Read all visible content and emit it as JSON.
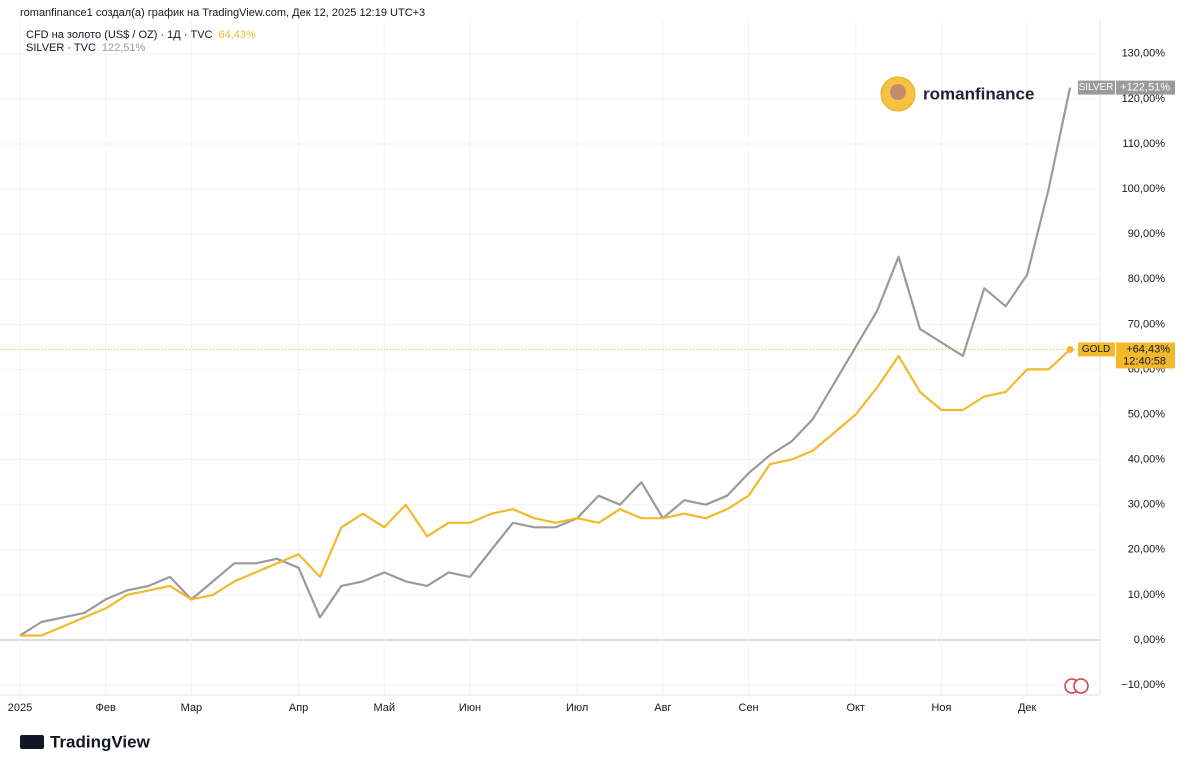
{
  "header": "romanfinance1 создал(а) график на TradingView.com, Дек 12, 2025 12:19 UTC+3",
  "watermark": "romanfinance",
  "footer": "TradingView",
  "chart_data": {
    "type": "line",
    "categories": [
      "2025",
      null,
      null,
      null,
      "Фев",
      null,
      null,
      null,
      "Мар",
      null,
      null,
      null,
      null,
      "Апр",
      null,
      null,
      null,
      "Май",
      null,
      null,
      null,
      "Июн",
      null,
      null,
      null,
      null,
      "Июл",
      null,
      null,
      null,
      "Авг",
      null,
      null,
      null,
      "Сен",
      null,
      null,
      null,
      null,
      "Окт",
      null,
      null,
      null,
      "Ноя",
      null,
      null,
      null,
      "Дек",
      null,
      null
    ],
    "series": [
      {
        "name": "CFD на золото (US$ / OZ) · 1Д · TVC",
        "tag_name": "GOLD",
        "legend_value": "64,43%",
        "tag": "+64,43%",
        "countdown": "12:40:58",
        "color": "#f2b92c",
        "values": [
          1,
          1,
          3,
          5,
          7,
          10,
          11,
          12,
          9,
          10,
          13,
          15,
          17,
          19,
          14,
          25,
          28,
          25,
          30,
          23,
          26,
          26,
          28,
          29,
          27,
          26,
          27,
          26,
          29,
          27,
          27,
          28,
          27,
          29,
          32,
          39,
          40,
          42,
          46,
          50,
          56,
          63,
          55,
          51,
          51,
          54,
          55,
          60,
          60,
          64.43
        ]
      },
      {
        "name": "SILVER · TVC",
        "tag_name": "SILVER",
        "legend_value": "122,51%",
        "tag": "+122,51%",
        "color": "#9a9a9a",
        "values": [
          1,
          4,
          5,
          6,
          9,
          11,
          12,
          14,
          9,
          13,
          17,
          17,
          18,
          16,
          5,
          12,
          13,
          15,
          13,
          12,
          15,
          14,
          20,
          26,
          25,
          25,
          27,
          32,
          30,
          35,
          27,
          31,
          30,
          32,
          37,
          41,
          44,
          49,
          57,
          65,
          73,
          85,
          69,
          66,
          63,
          78,
          74,
          81,
          100,
          122.51
        ]
      }
    ],
    "ylim": [
      -12.2,
      137.5
    ],
    "yticks": [
      {
        "value": -10,
        "label": "−10,00%"
      },
      {
        "value": 0,
        "label": "0,00%"
      },
      {
        "value": 10,
        "label": "10,00%"
      },
      {
        "value": 20,
        "label": "20,00%"
      },
      {
        "value": 30,
        "label": "30,00%"
      },
      {
        "value": 40,
        "label": "40,00%"
      },
      {
        "value": 50,
        "label": "50,00%"
      },
      {
        "value": 60,
        "label": "60,00%"
      },
      {
        "value": 70,
        "label": "70,00%"
      },
      {
        "value": 80,
        "label": "80,00%"
      },
      {
        "value": 90,
        "label": "90,00%"
      },
      {
        "value": 100,
        "label": "100,00%"
      },
      {
        "value": 110,
        "label": "110,00%"
      },
      {
        "value": 120,
        "label": "120,00%"
      },
      {
        "value": 130,
        "label": "130,00%"
      }
    ],
    "grid": true
  }
}
